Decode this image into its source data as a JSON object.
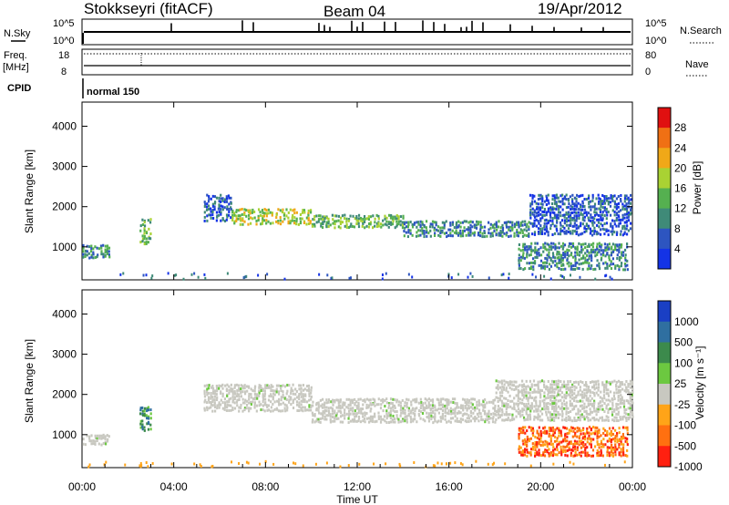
{
  "header": {
    "station": "Stokkseyri (fitACF)",
    "beam": "Beam 04",
    "date": "19/Apr/2012"
  },
  "top_panels": {
    "nsky_label": "N.Sky",
    "nsky_ticks": [
      "10^5",
      "10^0"
    ],
    "nsearch_label": "N.Search",
    "nsearch_ticks": [
      "10^5",
      "10^0"
    ],
    "freq_label": "Freq.",
    "freq_unit": "[MHz]",
    "freq_ticks": [
      "18",
      "8"
    ],
    "nave_label": "Nave",
    "nave_ticks": [
      "80",
      "0"
    ],
    "cpid_label": "CPID",
    "cpid_value": "normal 150"
  },
  "chart_data": [
    {
      "type": "heatmap",
      "panel": "power",
      "ylabel": "Slant Range [km]",
      "yticks": [
        1000,
        2000,
        3000,
        4000
      ],
      "ylim": [
        180,
        4600
      ],
      "xlim_hours": [
        0,
        24
      ],
      "colorbar": {
        "label": "Power [dB]",
        "ticks": [
          "4",
          "8",
          "12",
          "16",
          "20",
          "24",
          "28"
        ],
        "colors": [
          "#1433e6",
          "#2d55c0",
          "#3f8a78",
          "#55b050",
          "#a9d233",
          "#f0a818",
          "#f07014",
          "#e01010"
        ]
      },
      "scatter_regions": [
        {
          "t0": 0.0,
          "t1": 1.2,
          "r0": 700,
          "r1": 1050,
          "level": 2
        },
        {
          "t0": 2.5,
          "t1": 3.0,
          "r0": 1050,
          "r1": 1700,
          "level": 3
        },
        {
          "t0": 5.3,
          "t1": 6.5,
          "r0": 1600,
          "r1": 2300,
          "level": 1
        },
        {
          "t0": 6.5,
          "t1": 10.0,
          "r0": 1550,
          "r1": 1950,
          "level": 4
        },
        {
          "t0": 10.0,
          "t1": 14.0,
          "r0": 1450,
          "r1": 1800,
          "level": 3
        },
        {
          "t0": 14.0,
          "t1": 19.5,
          "r0": 1250,
          "r1": 1650,
          "level": 2
        },
        {
          "t0": 19.5,
          "t1": 24.0,
          "r0": 1300,
          "r1": 2300,
          "level": 1
        },
        {
          "t0": 19.0,
          "t1": 23.8,
          "r0": 450,
          "r1": 1100,
          "level": 2
        }
      ]
    },
    {
      "type": "heatmap",
      "panel": "velocity",
      "ylabel": "Slant Range [km]",
      "xlabel": "Time UT",
      "yticks": [
        1000,
        2000,
        3000,
        4000
      ],
      "ylim": [
        180,
        4600
      ],
      "xticks": [
        "00:00",
        "04:00",
        "08:00",
        "12:00",
        "16:00",
        "20:00",
        "00:00"
      ],
      "xlim_hours": [
        0,
        24
      ],
      "colorbar": {
        "label": "Velocity [m s⁻¹]",
        "ticks": [
          "1000",
          "500",
          "100",
          "25",
          "-25",
          "-100",
          "-500",
          "-1000"
        ],
        "colors": [
          "#1a3fc4",
          "#2f6fa0",
          "#3c8a4c",
          "#6cc840",
          "#c8c8c0",
          "#ffa418",
          "#ff7010",
          "#ff2010"
        ]
      },
      "scatter_regions": [
        {
          "t0": 0.0,
          "t1": 1.2,
          "r0": 700,
          "r1": 1000,
          "class": "ground"
        },
        {
          "t0": 2.5,
          "t1": 3.0,
          "r0": 1100,
          "r1": 1700,
          "class": "toward"
        },
        {
          "t0": 5.3,
          "t1": 10.0,
          "r0": 1600,
          "r1": 2250,
          "class": "ground"
        },
        {
          "t0": 10.0,
          "t1": 18.0,
          "r0": 1300,
          "r1": 1900,
          "class": "ground"
        },
        {
          "t0": 18.0,
          "t1": 24.0,
          "r0": 1350,
          "r1": 2350,
          "class": "ground"
        },
        {
          "t0": 19.0,
          "t1": 23.8,
          "r0": 450,
          "r1": 1200,
          "class": "away"
        }
      ]
    }
  ]
}
